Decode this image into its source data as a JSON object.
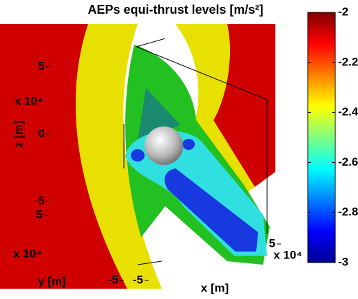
{
  "chart_data": {
    "type": "isosurface",
    "title": "AEPs equi-thrust levels [m/s²]",
    "xlabel": "x [m]",
    "ylabel": "y [m]",
    "zlabel": "z [m]",
    "xlim": [
      -5,
      5
    ],
    "ylim": [
      -5,
      5
    ],
    "zlim": [
      -5,
      5
    ],
    "xticks": [
      -5,
      5
    ],
    "yticks": [
      -5,
      5
    ],
    "zticks": [
      -5,
      0,
      5
    ],
    "x_multiplier": "x 10⁴",
    "y_multiplier": "x 10⁴",
    "z_multiplier": "x 10⁴",
    "colorbar": {
      "colormap": "jet",
      "clim": [
        -3,
        -2
      ],
      "ticks": [
        -3,
        -2.8,
        -2.6,
        -2.4,
        -2.2,
        -2
      ]
    }
  }
}
